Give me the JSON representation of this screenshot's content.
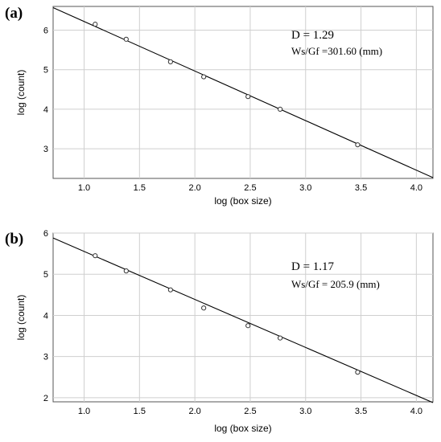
{
  "chart_data": [
    {
      "type": "scatter",
      "panel_label": "(a)",
      "xlabel": "log (box size)",
      "ylabel": "log (count)",
      "xlim": [
        0.72,
        4.15
      ],
      "ylim": [
        2.25,
        6.6
      ],
      "xticks": [
        "1.0",
        "1.5",
        "2.0",
        "2.5",
        "3.0",
        "3.5",
        "4.0"
      ],
      "yticks": [
        "3",
        "4",
        "5",
        "6"
      ],
      "grid": true,
      "annotation_line1": "D = 1.29",
      "annotation_line2": "Ws/Gf =301.60 (mm)",
      "points": {
        "x": [
          1.1,
          1.38,
          1.78,
          2.08,
          2.48,
          2.77,
          3.47
        ],
        "y": [
          6.15,
          5.77,
          5.2,
          4.82,
          4.32,
          4.0,
          3.1
        ]
      },
      "fit_line": {
        "x": [
          0.72,
          4.15
        ],
        "y": [
          6.57,
          2.27
        ]
      }
    },
    {
      "type": "scatter",
      "panel_label": "(b)",
      "xlabel": "log (box size)",
      "ylabel": "log (count)",
      "xlim": [
        0.72,
        4.15
      ],
      "ylim": [
        1.9,
        6.0
      ],
      "xticks": [
        "1.0",
        "1.5",
        "2.0",
        "2.5",
        "3.0",
        "3.5",
        "4.0"
      ],
      "yticks": [
        "2",
        "3",
        "4",
        "5",
        "6"
      ],
      "grid": true,
      "annotation_line1": "D = 1.17",
      "annotation_line2": "Ws/Gf = 205.9 (mm)",
      "points": {
        "x": [
          1.1,
          1.38,
          1.78,
          2.08,
          2.48,
          2.77,
          3.47
        ],
        "y": [
          5.45,
          5.08,
          4.62,
          4.18,
          3.75,
          3.45,
          2.62
        ]
      },
      "fit_line": {
        "x": [
          0.72,
          4.15
        ],
        "y": [
          5.88,
          1.88
        ]
      }
    }
  ]
}
